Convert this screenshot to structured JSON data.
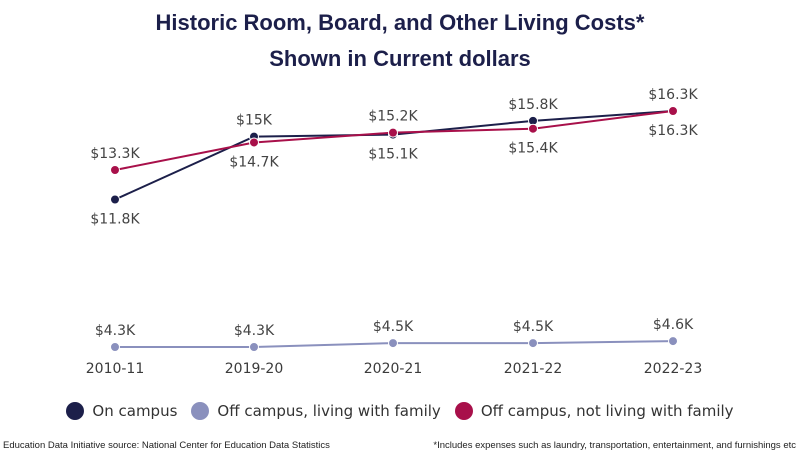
{
  "chart_data": {
    "type": "line",
    "title": "Historic Room, Board, and Other Living Costs*",
    "subtitle": "Shown in Current dollars",
    "categories": [
      "2010-11",
      "2019-20",
      "2020-21",
      "2021-22",
      "2022-23"
    ],
    "series": [
      {
        "name": "On campus",
        "color": "#1c1f4a",
        "values": [
          11.8,
          15.0,
          15.1,
          15.8,
          16.3
        ],
        "labels": [
          "$11.8K",
          "$15K",
          "$15.1K",
          "$15.8K",
          "$16.3K"
        ]
      },
      {
        "name": "Off campus, living with family",
        "color": "#8a90bd",
        "values": [
          4.3,
          4.3,
          4.5,
          4.5,
          4.6
        ],
        "labels": [
          "$4.3K",
          "$4.3K",
          "$4.5K",
          "$4.5K",
          "$4.6K"
        ]
      },
      {
        "name": "Off campus, not living with family",
        "color": "#a8104a",
        "values": [
          13.3,
          14.7,
          15.2,
          15.4,
          16.3
        ],
        "labels": [
          "$13.3K",
          "$14.7K",
          "$15.2K",
          "$15.4K",
          "$16.3K"
        ]
      }
    ],
    "ylim": [
      4.3,
      16.3
    ],
    "xlabel": "",
    "ylabel": "",
    "grid": false,
    "legend_position": "bottom"
  },
  "footer": {
    "source": "Education Data Initiative source: National Center for Education Data Statistics",
    "note": "*Includes expenses such as laundry, transportation, entertainment, and furnishings etc"
  }
}
